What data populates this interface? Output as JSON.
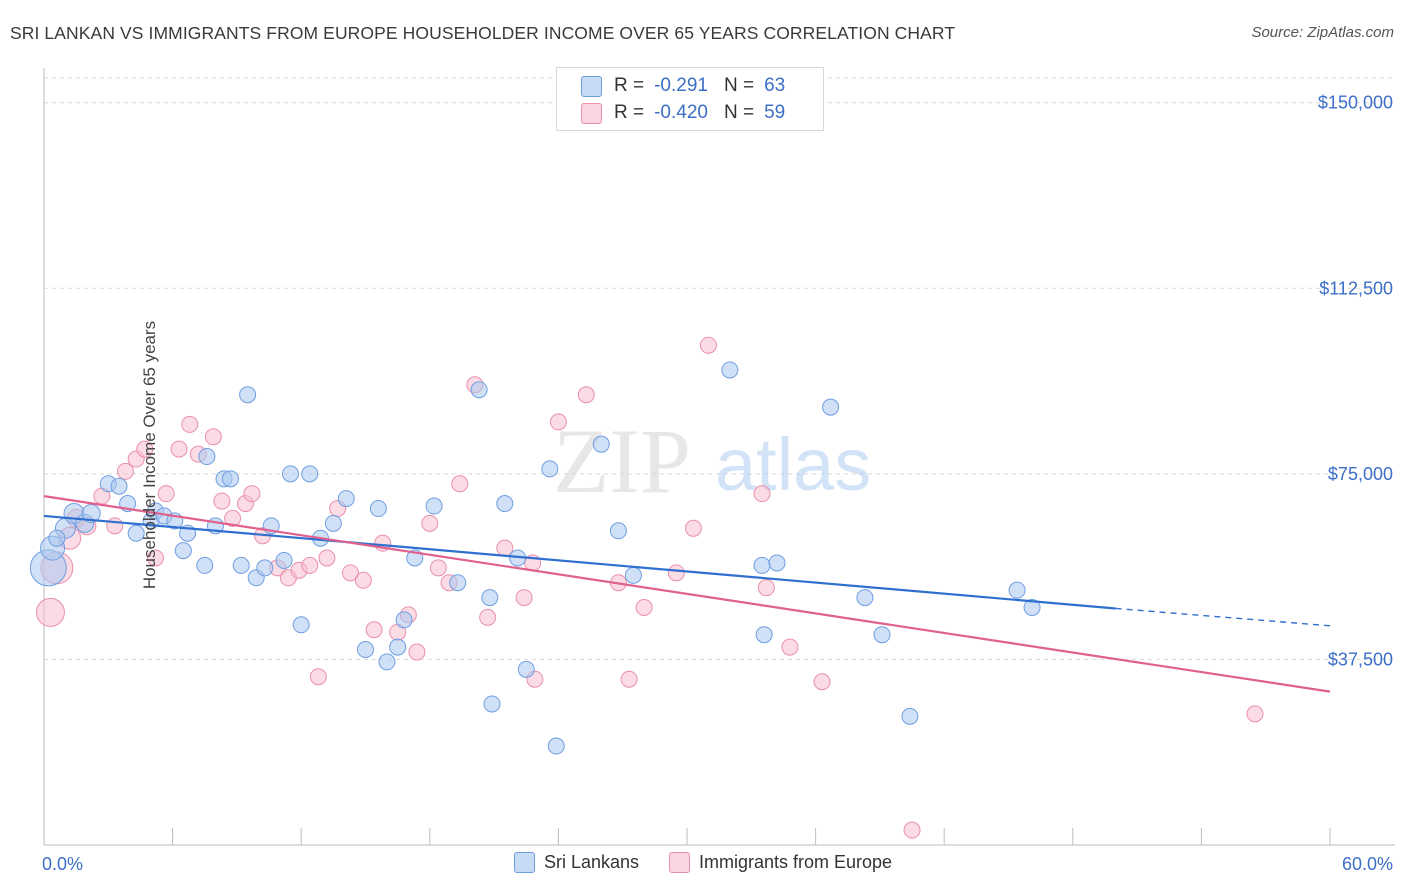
{
  "title": "SRI LANKAN VS IMMIGRANTS FROM EUROPE HOUSEHOLDER INCOME OVER 65 YEARS CORRELATION CHART",
  "source": "Source: ZipAtlas.com",
  "watermark": "ZIPatlas",
  "stats": [
    {
      "r_label": "R =",
      "r_value": "-0.291",
      "n_label": "N =",
      "n_value": "63",
      "color": "#a9c8f0",
      "border": "#6f9ee0"
    },
    {
      "r_label": "R =",
      "r_value": "-0.420",
      "n_label": "N =",
      "n_value": "59",
      "color": "#f7c0d0",
      "border": "#ea8fab"
    }
  ],
  "legend": [
    {
      "label": "Sri Lankans",
      "color": "#a9c8f0",
      "border": "#6f9ee0"
    },
    {
      "label": "Immigrants from Europe",
      "color": "#f7c0d0",
      "border": "#ea8fab"
    }
  ],
  "chart_data": {
    "type": "scatter",
    "title": "SRI LANKAN VS IMMIGRANTS FROM EUROPE HOUSEHOLDER INCOME OVER 65 YEARS CORRELATION CHART",
    "xlabel": "",
    "ylabel": "Householder Income Over 65 years",
    "xlim": [
      0,
      60
    ],
    "ylim": [
      0,
      155000
    ],
    "x_tick_labels": [
      "0.0%",
      "60.0%"
    ],
    "y_ticks": [
      37500,
      75000,
      112500,
      150000
    ],
    "y_tick_labels": [
      "$37,500",
      "$75,000",
      "$112,500",
      "$150,000"
    ],
    "grid": true,
    "colors": {
      "blue_fill": "#a9c8f0",
      "blue_line": "#2f6fcf",
      "pink_fill": "#f7c0d0",
      "pink_line": "#e0608e",
      "tick_text": "#3c6fc7"
    },
    "series": [
      {
        "name": "Sri Lankans",
        "color": "#6f9ee0",
        "trend": {
          "x0": 0,
          "y0": 66500,
          "x1": 50,
          "y1": 47800,
          "dash_to_x": 60,
          "dash_to_y": 44300
        },
        "points": [
          [
            0.2,
            56000,
            18
          ],
          [
            0.4,
            60000,
            12
          ],
          [
            1.0,
            64000,
            10
          ],
          [
            1.4,
            67000,
            10
          ],
          [
            1.9,
            65000,
            9
          ],
          [
            2.2,
            67000,
            9
          ],
          [
            3.0,
            73000,
            8
          ],
          [
            3.5,
            72500,
            8
          ],
          [
            3.9,
            69000,
            8
          ],
          [
            4.3,
            63000,
            8
          ],
          [
            5.0,
            65500,
            8
          ],
          [
            5.2,
            67500,
            8
          ],
          [
            5.6,
            66500,
            8
          ],
          [
            6.1,
            65500,
            8
          ],
          [
            6.5,
            59500,
            8
          ],
          [
            6.7,
            63000,
            8
          ],
          [
            7.5,
            56500,
            8
          ],
          [
            7.6,
            78500,
            8
          ],
          [
            8.0,
            64500,
            8
          ],
          [
            8.4,
            74000,
            8
          ],
          [
            8.7,
            74000,
            8
          ],
          [
            9.2,
            56500,
            8
          ],
          [
            9.5,
            91000,
            8
          ],
          [
            9.9,
            54000,
            8
          ],
          [
            10.3,
            56000,
            8
          ],
          [
            10.6,
            64500,
            8
          ],
          [
            11.2,
            57500,
            8
          ],
          [
            11.5,
            75000,
            8
          ],
          [
            12.0,
            44500,
            8
          ],
          [
            12.4,
            75000,
            8
          ],
          [
            12.9,
            62000,
            8
          ],
          [
            13.5,
            65000,
            8
          ],
          [
            14.1,
            70000,
            8
          ],
          [
            15.0,
            39500,
            8
          ],
          [
            15.6,
            68000,
            8
          ],
          [
            16.0,
            37000,
            8
          ],
          [
            16.5,
            40000,
            8
          ],
          [
            16.8,
            45500,
            8
          ],
          [
            17.3,
            58000,
            8
          ],
          [
            18.2,
            68500,
            8
          ],
          [
            19.3,
            53000,
            8
          ],
          [
            20.3,
            92000,
            8
          ],
          [
            20.8,
            50000,
            8
          ],
          [
            20.9,
            28500,
            8
          ],
          [
            21.5,
            69000,
            8
          ],
          [
            22.1,
            58000,
            8
          ],
          [
            22.5,
            35500,
            8
          ],
          [
            23.6,
            76000,
            8
          ],
          [
            23.9,
            20000,
            8
          ],
          [
            26.0,
            81000,
            8
          ],
          [
            26.8,
            63500,
            8
          ],
          [
            27.5,
            54500,
            8
          ],
          [
            32.0,
            96000,
            8
          ],
          [
            33.5,
            56500,
            8
          ],
          [
            33.6,
            42500,
            8
          ],
          [
            34.2,
            57000,
            8
          ],
          [
            36.7,
            88500,
            8
          ],
          [
            38.3,
            50000,
            8
          ],
          [
            39.1,
            42500,
            8
          ],
          [
            40.4,
            26000,
            8
          ],
          [
            45.4,
            51500,
            8
          ],
          [
            46.1,
            48000,
            8
          ],
          [
            0.6,
            62000,
            8
          ]
        ]
      },
      {
        "name": "Immigrants from Europe",
        "color": "#ea8fab",
        "trend": {
          "x0": 0,
          "y0": 70500,
          "x1": 60,
          "y1": 31000
        },
        "points": [
          [
            0.3,
            47000,
            14
          ],
          [
            0.6,
            56000,
            16
          ],
          [
            1.2,
            62000,
            11
          ],
          [
            1.5,
            66000,
            9
          ],
          [
            2.0,
            64500,
            9
          ],
          [
            2.7,
            70500,
            8
          ],
          [
            3.3,
            64500,
            8
          ],
          [
            3.8,
            75500,
            8
          ],
          [
            4.3,
            78000,
            8
          ],
          [
            4.7,
            80000,
            8
          ],
          [
            5.2,
            58000,
            8
          ],
          [
            5.7,
            71000,
            8
          ],
          [
            6.3,
            80000,
            8
          ],
          [
            6.8,
            85000,
            8
          ],
          [
            7.2,
            79000,
            8
          ],
          [
            7.9,
            82500,
            8
          ],
          [
            8.3,
            69500,
            8
          ],
          [
            8.8,
            66000,
            8
          ],
          [
            9.4,
            69000,
            8
          ],
          [
            9.7,
            71000,
            8
          ],
          [
            10.2,
            62500,
            8
          ],
          [
            10.9,
            56000,
            8
          ],
          [
            11.4,
            54000,
            8
          ],
          [
            11.9,
            55500,
            8
          ],
          [
            12.4,
            56500,
            8
          ],
          [
            12.8,
            34000,
            8
          ],
          [
            13.2,
            58000,
            8
          ],
          [
            13.7,
            68000,
            8
          ],
          [
            14.3,
            55000,
            8
          ],
          [
            14.9,
            53500,
            8
          ],
          [
            15.4,
            43500,
            8
          ],
          [
            15.8,
            61000,
            8
          ],
          [
            16.5,
            43000,
            8
          ],
          [
            17.0,
            46500,
            8
          ],
          [
            17.4,
            39000,
            8
          ],
          [
            18.0,
            65000,
            8
          ],
          [
            18.4,
            56000,
            8
          ],
          [
            18.9,
            53000,
            8
          ],
          [
            19.4,
            73000,
            8
          ],
          [
            20.1,
            93000,
            8
          ],
          [
            20.7,
            46000,
            8
          ],
          [
            21.5,
            60000,
            8
          ],
          [
            22.4,
            50000,
            8
          ],
          [
            22.8,
            57000,
            8
          ],
          [
            22.9,
            33500,
            8
          ],
          [
            24.0,
            85500,
            8
          ],
          [
            25.3,
            91000,
            8
          ],
          [
            26.8,
            53000,
            8
          ],
          [
            27.3,
            33500,
            8
          ],
          [
            28.0,
            48000,
            8
          ],
          [
            29.5,
            55000,
            8
          ],
          [
            30.3,
            64000,
            8
          ],
          [
            31.0,
            101000,
            8
          ],
          [
            33.5,
            71000,
            8
          ],
          [
            33.7,
            52000,
            8
          ],
          [
            34.8,
            40000,
            8
          ],
          [
            36.3,
            33000,
            8
          ],
          [
            40.5,
            3000,
            8
          ],
          [
            56.5,
            26500,
            8
          ]
        ]
      }
    ]
  }
}
